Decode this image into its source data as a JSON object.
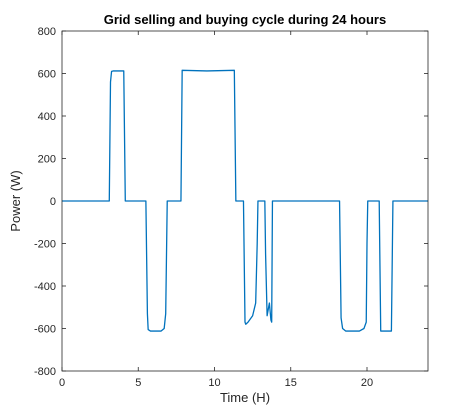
{
  "chart_data": {
    "type": "line",
    "title": "Grid selling and buying cycle during 24 hours",
    "xlabel": "Time (H)",
    "ylabel": "Power (W)",
    "xlim": [
      0,
      24
    ],
    "ylim": [
      -800,
      800
    ],
    "xticks": [
      0,
      5,
      10,
      15,
      20
    ],
    "yticks": [
      -800,
      -600,
      -400,
      -200,
      0,
      200,
      400,
      600,
      800
    ],
    "grid": false,
    "series_color": "#0072BD",
    "series": [
      {
        "x": [
          0,
          3.1,
          3.18,
          3.25,
          3.35,
          4.05,
          4.15,
          5.5,
          5.6,
          5.65,
          5.8,
          6.5,
          6.7,
          6.8,
          6.9,
          7.8,
          7.88,
          9.5,
          11.3,
          11.4,
          11.9,
          12.0,
          12.05,
          12.2,
          12.5,
          12.7,
          12.8,
          12.85,
          13.3,
          13.35,
          13.45,
          13.6,
          13.7,
          13.75,
          13.8,
          18.2,
          18.3,
          18.4,
          18.6,
          19.5,
          19.8,
          19.95,
          20.0,
          20.05,
          20.8,
          20.9,
          21.6,
          21.7,
          24.0
        ],
        "y": [
          0,
          0,
          560,
          610,
          612,
          612,
          0,
          0,
          -530,
          -605,
          -612,
          -612,
          -600,
          -530,
          0,
          0,
          615,
          612,
          615,
          0,
          0,
          -570,
          -580,
          -570,
          -540,
          -480,
          -200,
          0,
          0,
          -250,
          -540,
          -480,
          -560,
          -570,
          0,
          0,
          -550,
          -600,
          -612,
          -612,
          -600,
          -570,
          -200,
          0,
          0,
          -612,
          -612,
          0,
          0
        ]
      }
    ]
  }
}
